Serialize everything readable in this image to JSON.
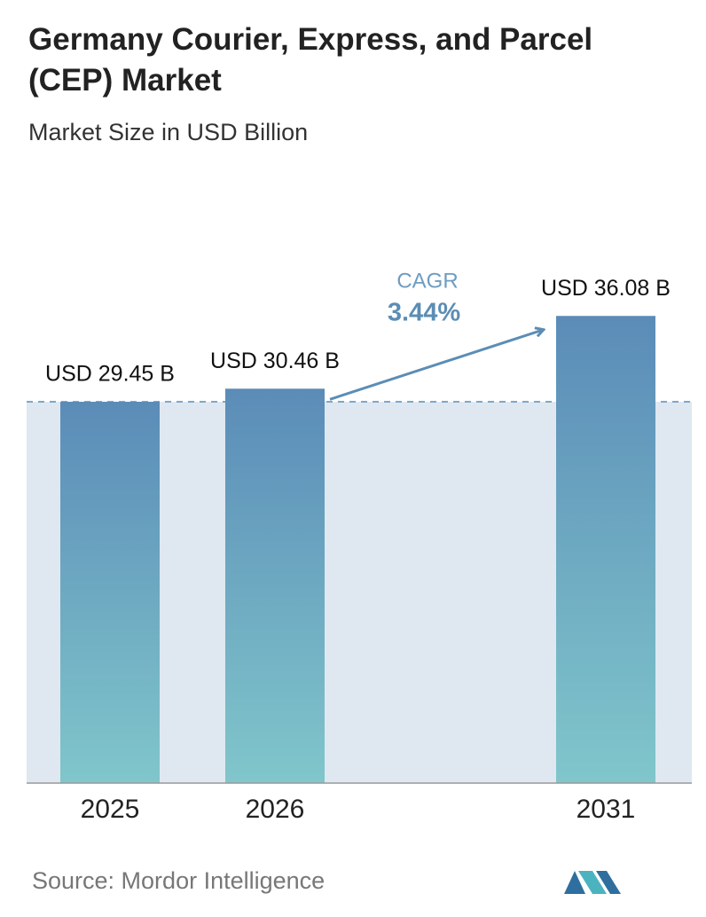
{
  "chart_data": {
    "type": "bar",
    "title": "Germany Courier, Express, and Parcel (CEP) Market",
    "subtitle": "Market Size in USD Billion",
    "categories": [
      "2025",
      "2026",
      "2031"
    ],
    "values": [
      29.45,
      30.46,
      36.08
    ],
    "value_labels": [
      "USD 29.45 B",
      "USD 30.46 B",
      "USD 36.08 B"
    ],
    "ylim": [
      0,
      40
    ],
    "annotation": {
      "label": "CAGR",
      "value": "3.44%"
    },
    "source": "Source: Mordor Intelligence"
  }
}
